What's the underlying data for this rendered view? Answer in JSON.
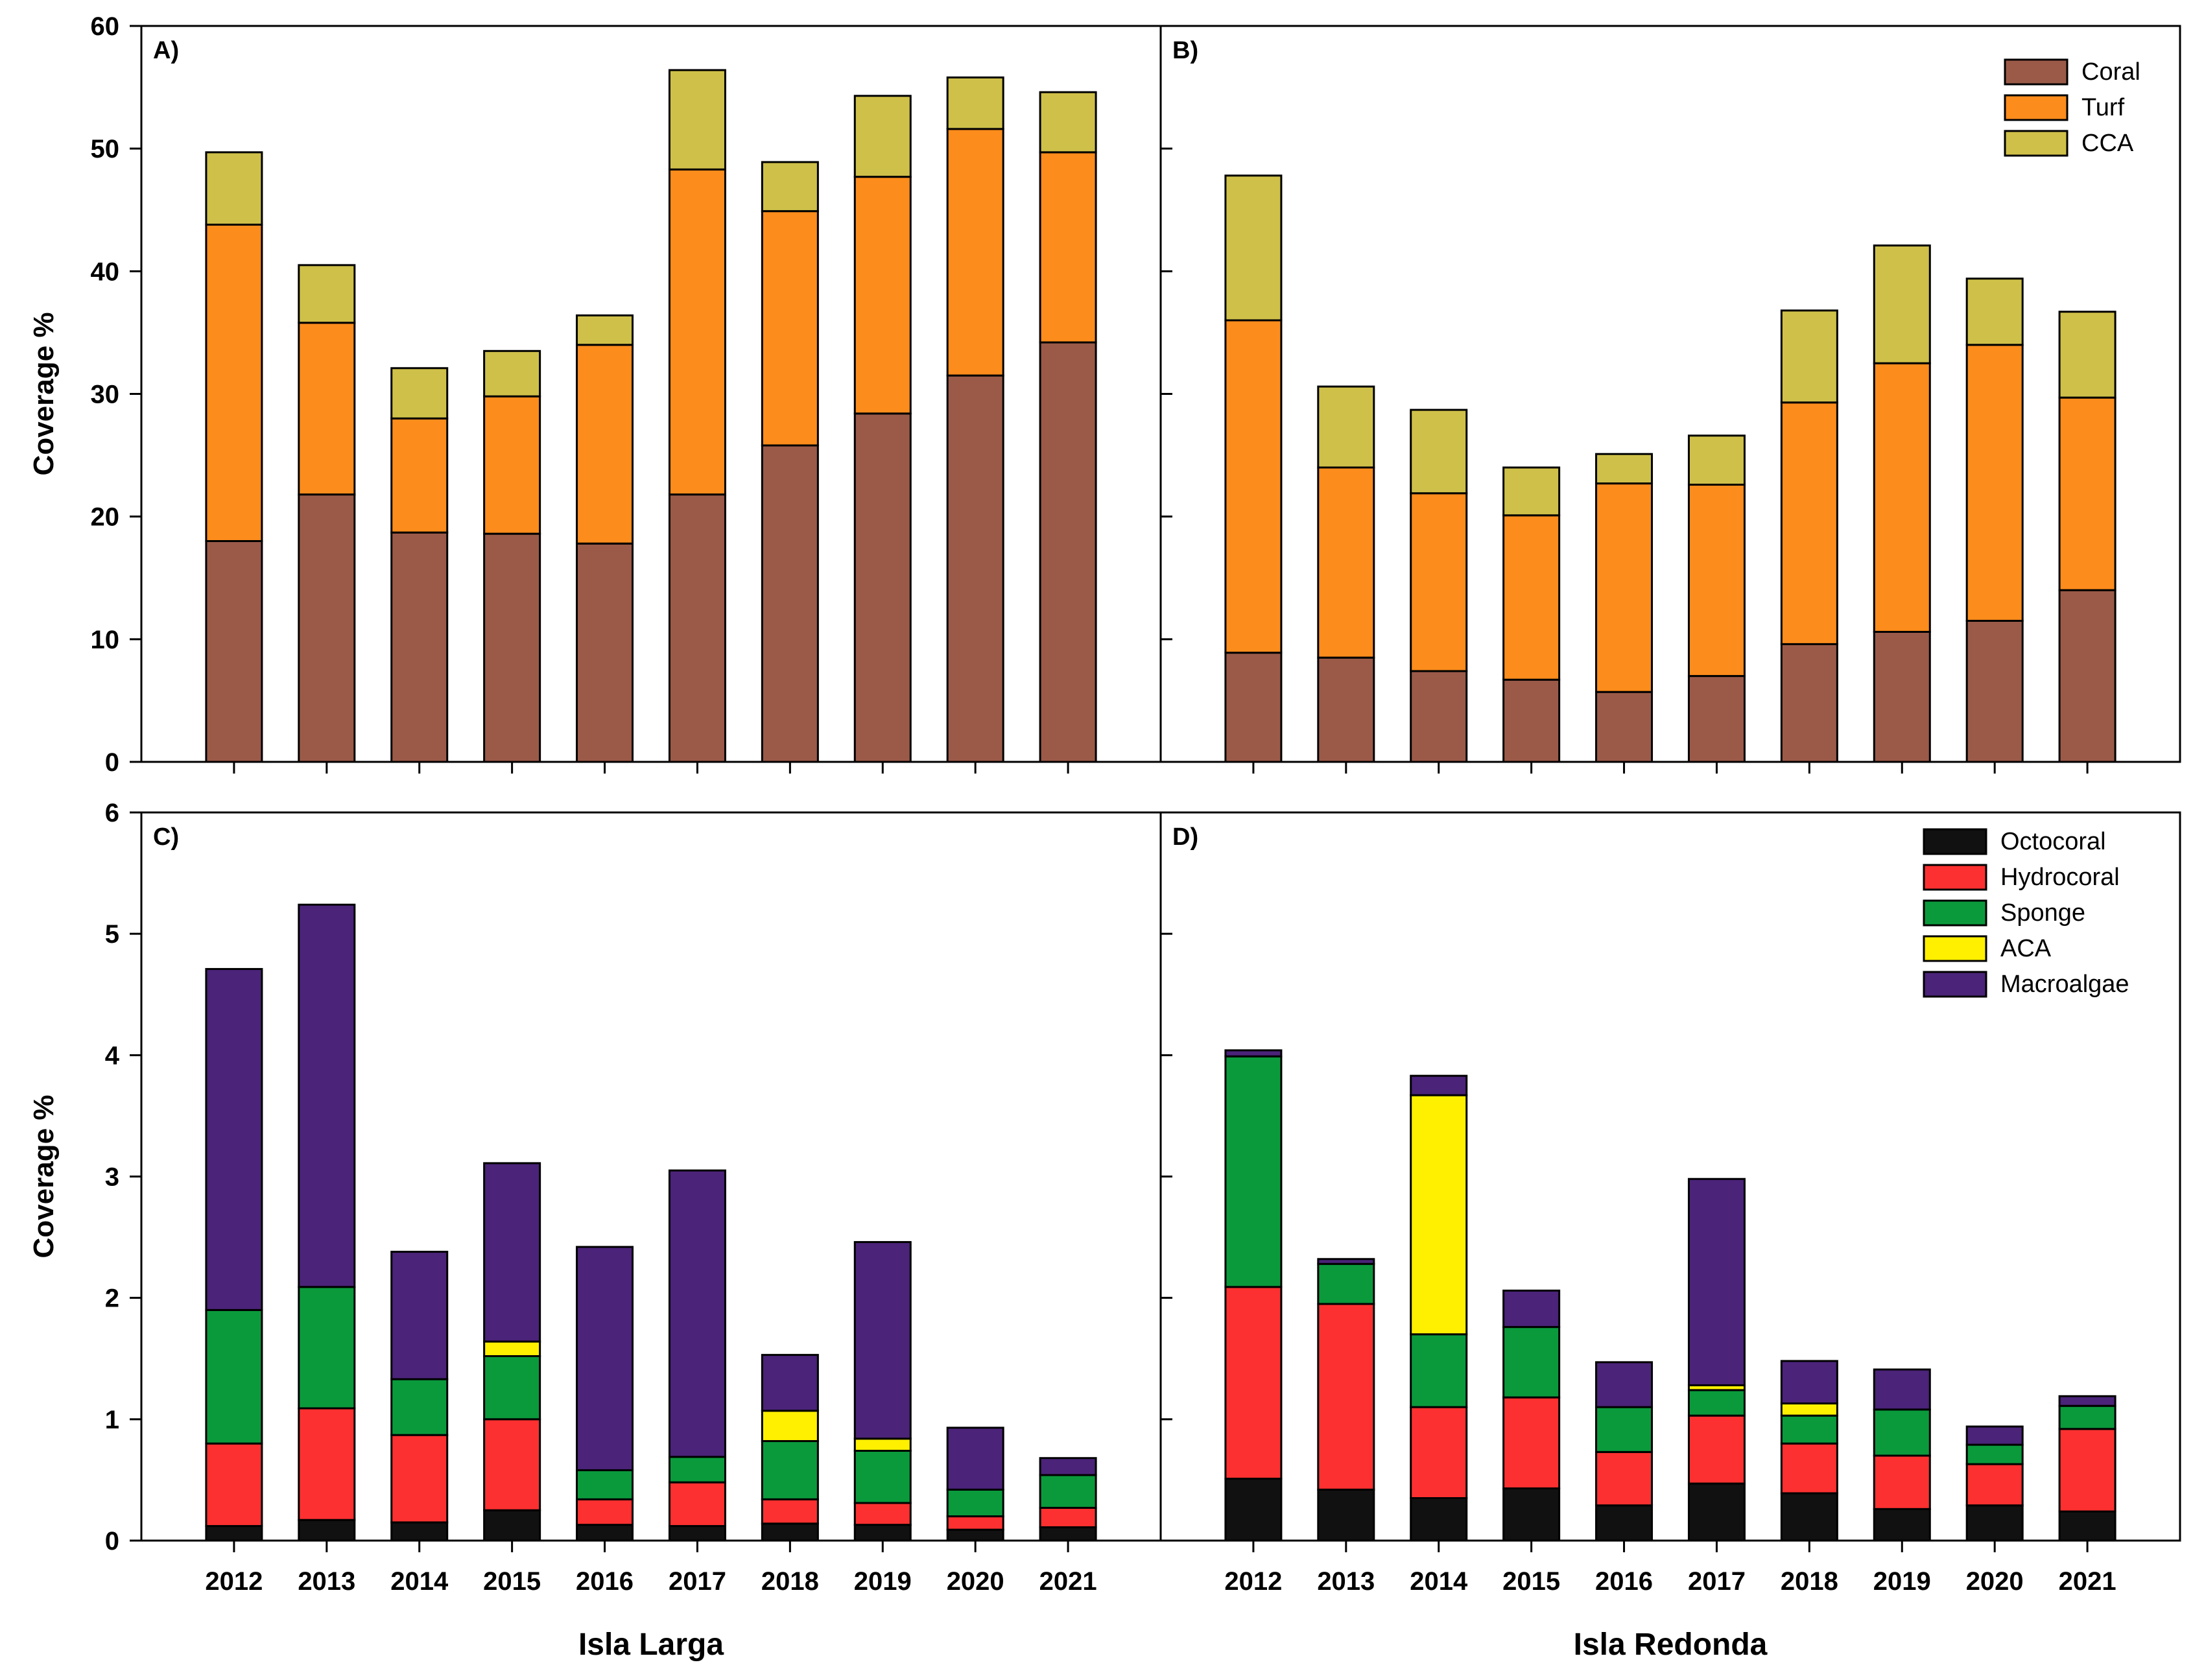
{
  "chart_data": [
    {
      "type": "bar",
      "stacked": true,
      "panel": "A)",
      "site": "Isla Larga",
      "categories": [
        "2012",
        "2013",
        "2014",
        "2015",
        "2016",
        "2017",
        "2018",
        "2019",
        "2020",
        "2021"
      ],
      "ylabel": "Coverage %",
      "ylim": [
        0,
        60
      ],
      "yticks": [
        0,
        10,
        20,
        30,
        40,
        50,
        60
      ],
      "series": [
        {
          "name": "Coral",
          "color": "#9b5a48",
          "values": [
            18.0,
            21.8,
            18.7,
            18.6,
            17.8,
            21.8,
            25.8,
            28.4,
            31.5,
            34.2
          ]
        },
        {
          "name": "Turf",
          "color": "#fc8c1c",
          "values": [
            25.8,
            14.0,
            9.3,
            11.2,
            16.2,
            26.5,
            19.1,
            19.3,
            20.1,
            15.5
          ]
        },
        {
          "name": "CCA",
          "color": "#cfc049",
          "values": [
            5.9,
            4.7,
            4.1,
            3.7,
            2.4,
            8.1,
            4.0,
            6.6,
            4.2,
            4.9
          ]
        }
      ]
    },
    {
      "type": "bar",
      "stacked": true,
      "panel": "B)",
      "site": "Isla Redonda",
      "categories": [
        "2012",
        "2013",
        "2014",
        "2015",
        "2016",
        "2017",
        "2018",
        "2019",
        "2020",
        "2021"
      ],
      "ylim": [
        0,
        60
      ],
      "yticks": [
        0,
        10,
        20,
        30,
        40,
        50,
        60
      ],
      "legend": {
        "entries": [
          "Coral",
          "Turf",
          "CCA"
        ],
        "position": "top-right"
      },
      "series": [
        {
          "name": "Coral",
          "color": "#9b5a48",
          "values": [
            8.9,
            8.5,
            7.4,
            6.7,
            5.7,
            7.0,
            9.6,
            10.6,
            11.5,
            14.0
          ]
        },
        {
          "name": "Turf",
          "color": "#fc8c1c",
          "values": [
            27.1,
            15.5,
            14.5,
            13.4,
            17.0,
            15.6,
            19.7,
            21.9,
            22.5,
            15.7
          ]
        },
        {
          "name": "CCA",
          "color": "#cfc049",
          "values": [
            11.8,
            6.6,
            6.8,
            3.9,
            2.4,
            4.0,
            7.5,
            9.6,
            5.4,
            7.0
          ]
        }
      ]
    },
    {
      "type": "bar",
      "stacked": true,
      "panel": "C)",
      "site": "Isla Larga",
      "categories": [
        "2012",
        "2013",
        "2014",
        "2015",
        "2016",
        "2017",
        "2018",
        "2019",
        "2020",
        "2021"
      ],
      "ylabel": "Coverage %",
      "ylim": [
        0,
        6
      ],
      "yticks": [
        0,
        1,
        2,
        3,
        4,
        5,
        6
      ],
      "series": [
        {
          "name": "Octocoral",
          "color": "#111111",
          "values": [
            0.12,
            0.17,
            0.15,
            0.25,
            0.13,
            0.12,
            0.14,
            0.13,
            0.09,
            0.11
          ]
        },
        {
          "name": "Hydrocoral",
          "color": "#fc3030",
          "values": [
            0.68,
            0.92,
            0.72,
            0.75,
            0.21,
            0.36,
            0.2,
            0.18,
            0.11,
            0.16
          ]
        },
        {
          "name": "Sponge",
          "color": "#0a9a3c",
          "values": [
            1.1,
            1.0,
            0.46,
            0.52,
            0.24,
            0.21,
            0.48,
            0.43,
            0.22,
            0.27
          ]
        },
        {
          "name": "ACA",
          "color": "#fff000",
          "values": [
            0.0,
            0.0,
            0.0,
            0.12,
            0.0,
            0.0,
            0.25,
            0.1,
            0.0,
            0.0
          ]
        },
        {
          "name": "Macroalgae",
          "color": "#4b2379",
          "values": [
            2.81,
            3.15,
            1.05,
            1.47,
            1.84,
            2.36,
            0.46,
            1.62,
            0.51,
            0.14
          ]
        }
      ]
    },
    {
      "type": "bar",
      "stacked": true,
      "panel": "D)",
      "site": "Isla Redonda",
      "categories": [
        "2012",
        "2013",
        "2014",
        "2015",
        "2016",
        "2017",
        "2018",
        "2019",
        "2020",
        "2021"
      ],
      "ylim": [
        0,
        6
      ],
      "yticks": [
        0,
        1,
        2,
        3,
        4,
        5,
        6
      ],
      "legend": {
        "entries": [
          "Octocoral",
          "Hydrocoral",
          "Sponge",
          "ACA",
          "Macroalgae"
        ],
        "position": "top-right"
      },
      "series": [
        {
          "name": "Octocoral",
          "color": "#111111",
          "values": [
            0.51,
            0.42,
            0.35,
            0.43,
            0.29,
            0.47,
            0.39,
            0.26,
            0.29,
            0.24
          ]
        },
        {
          "name": "Hydrocoral",
          "color": "#fc3030",
          "values": [
            1.58,
            1.53,
            0.75,
            0.75,
            0.44,
            0.56,
            0.41,
            0.44,
            0.34,
            0.68
          ]
        },
        {
          "name": "Sponge",
          "color": "#0a9a3c",
          "values": [
            1.9,
            0.33,
            0.6,
            0.58,
            0.37,
            0.21,
            0.23,
            0.38,
            0.16,
            0.19
          ]
        },
        {
          "name": "ACA",
          "color": "#fff000",
          "values": [
            0.0,
            0.0,
            1.97,
            0.0,
            0.0,
            0.04,
            0.1,
            0.0,
            0.0,
            0.0
          ]
        },
        {
          "name": "Macroalgae",
          "color": "#4b2379",
          "values": [
            0.05,
            0.04,
            0.16,
            0.3,
            0.37,
            1.7,
            0.35,
            0.33,
            0.15,
            0.08
          ]
        }
      ]
    }
  ],
  "site_labels": [
    "Isla Larga",
    "Isla Redonda"
  ]
}
